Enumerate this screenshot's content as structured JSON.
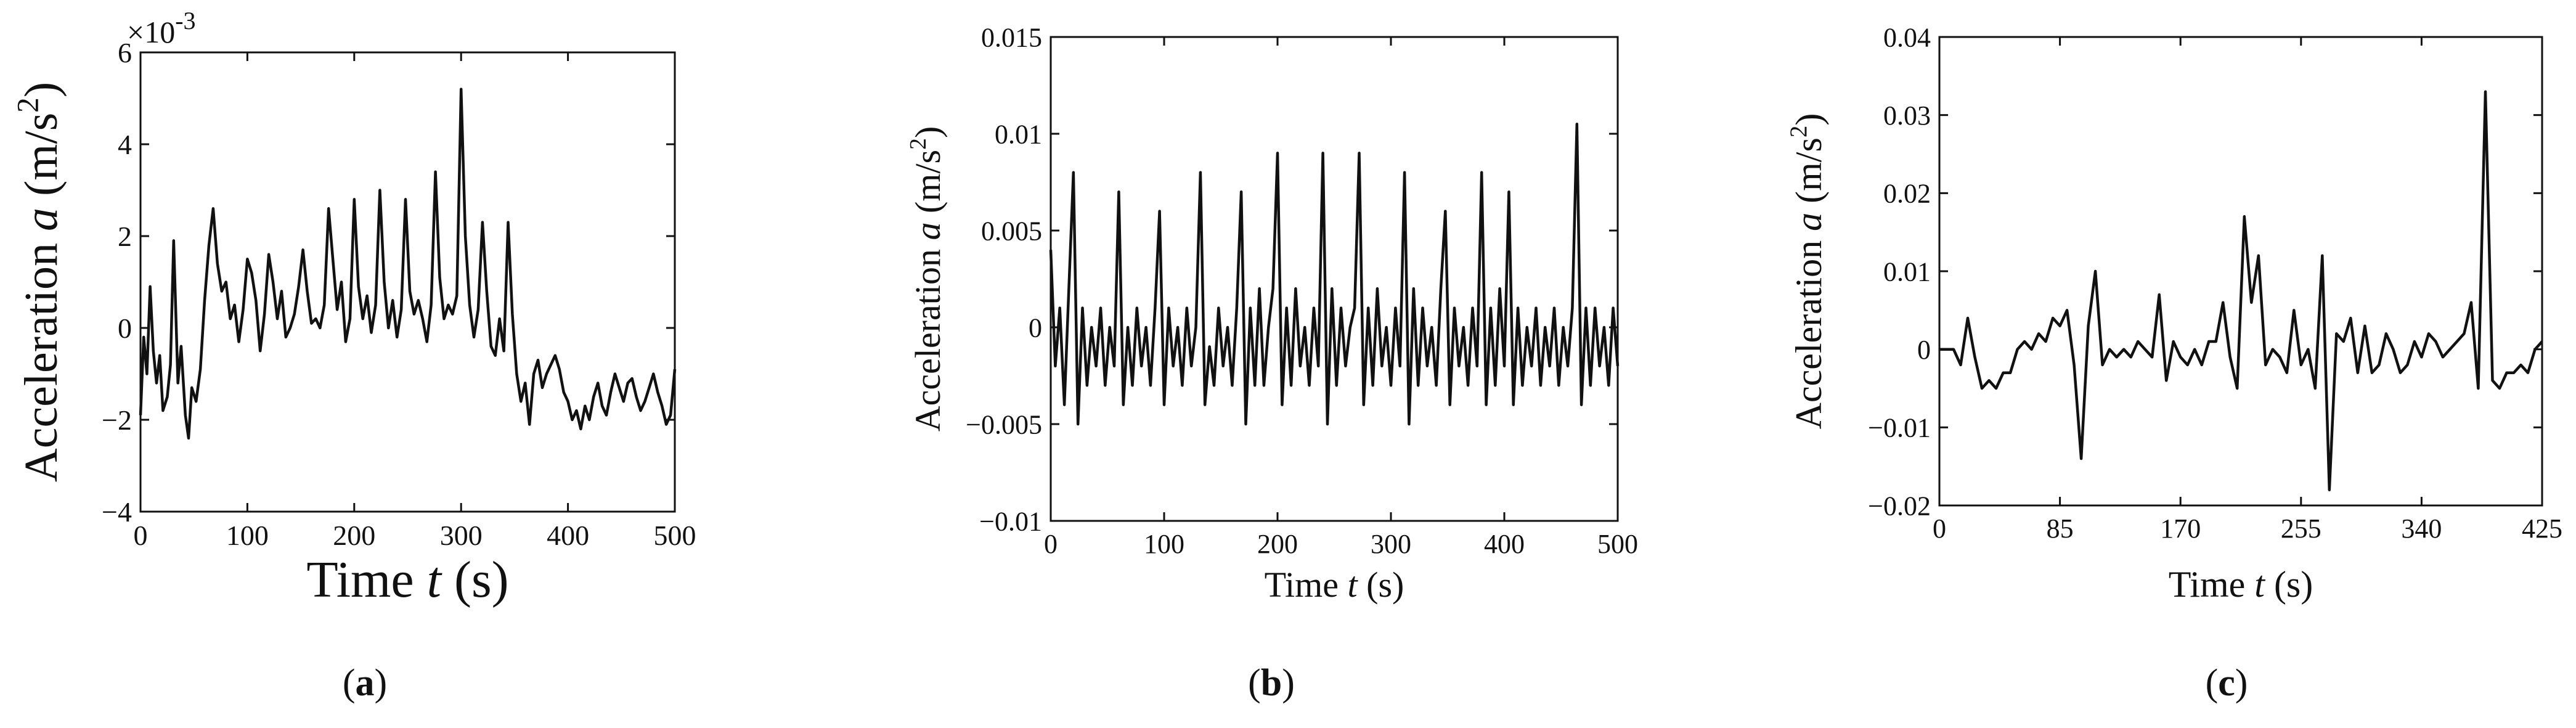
{
  "chart_data": [
    {
      "type": "line",
      "panel_label": "(a)",
      "xlabel_prefix": "Time ",
      "xlabel_var": "t",
      "xlabel_suffix": " (s)",
      "ylabel_prefix": "Acceleration ",
      "ylabel_var": "a",
      "ylabel_unit": " (m/s",
      "ylabel_exp": "2",
      "ylabel_close": ")",
      "y_exponent_label": "×10",
      "y_exponent_power": "-3",
      "xlim": [
        0,
        500
      ],
      "ylim": [
        -4,
        6
      ],
      "xticks": [
        0,
        100,
        200,
        300,
        400,
        500
      ],
      "yticks": [
        -4,
        -2,
        0,
        2,
        4,
        6
      ],
      "ytick_labels": [
        "−4",
        "−2",
        "0",
        "2",
        "4",
        "6"
      ],
      "series": [
        {
          "x": [
            0,
            3,
            6,
            9,
            12,
            15,
            18,
            21,
            25,
            28,
            31,
            35,
            38,
            42,
            45,
            48,
            52,
            56,
            60,
            64,
            68,
            72,
            76,
            80,
            84,
            88,
            92,
            96,
            100,
            104,
            108,
            112,
            116,
            120,
            124,
            128,
            132,
            136,
            140,
            144,
            148,
            152,
            156,
            160,
            164,
            168,
            172,
            176,
            180,
            184,
            188,
            192,
            196,
            200,
            204,
            208,
            212,
            216,
            220,
            224,
            228,
            232,
            236,
            240,
            244,
            248,
            252,
            256,
            260,
            264,
            268,
            272,
            276,
            280,
            284,
            288,
            292,
            296,
            300,
            304,
            308,
            312,
            316,
            320,
            324,
            328,
            332,
            336,
            340,
            344,
            348,
            352,
            356,
            360,
            364,
            368,
            372,
            376,
            380,
            384,
            388,
            392,
            396,
            400,
            404,
            408,
            412,
            416,
            420,
            424,
            428,
            432,
            436,
            440,
            444,
            448,
            452,
            456,
            460,
            464,
            468,
            472,
            476,
            480,
            484,
            488,
            492,
            496,
            500
          ],
          "y": [
            -1.9,
            -0.2,
            -1.0,
            0.9,
            -0.5,
            -1.2,
            -0.6,
            -1.8,
            -1.5,
            -0.8,
            1.9,
            -1.2,
            -0.4,
            -1.9,
            -2.4,
            -1.3,
            -1.6,
            -0.9,
            0.6,
            1.8,
            2.6,
            1.4,
            0.8,
            1.0,
            0.2,
            0.5,
            -0.3,
            0.4,
            1.5,
            1.2,
            0.6,
            -0.5,
            0.3,
            1.6,
            1.0,
            0.2,
            0.8,
            -0.2,
            0.0,
            0.3,
            0.9,
            1.7,
            0.8,
            0.1,
            0.2,
            0.0,
            0.5,
            2.6,
            1.5,
            0.4,
            1.0,
            -0.3,
            0.2,
            2.8,
            0.9,
            0.2,
            0.7,
            -0.1,
            0.5,
            3.0,
            1.0,
            0.0,
            0.6,
            -0.2,
            0.4,
            2.8,
            0.8,
            0.3,
            0.6,
            0.2,
            -0.3,
            0.5,
            3.4,
            1.1,
            0.2,
            0.5,
            0.3,
            0.7,
            5.2,
            2.0,
            0.5,
            -0.2,
            0.4,
            2.3,
            0.8,
            -0.4,
            -0.6,
            0.2,
            -0.5,
            2.3,
            0.3,
            -1.0,
            -1.6,
            -1.2,
            -2.1,
            -1.0,
            -0.7,
            -1.3,
            -1.0,
            -0.8,
            -0.6,
            -0.9,
            -1.4,
            -1.6,
            -2.0,
            -1.8,
            -2.2,
            -1.7,
            -2.0,
            -1.5,
            -1.2,
            -1.7,
            -1.9,
            -1.4,
            -1.0,
            -1.3,
            -1.6,
            -1.2,
            -1.1,
            -1.5,
            -1.8,
            -1.6,
            -1.3,
            -1.0,
            -1.4,
            -1.7,
            -2.1,
            -1.9,
            -0.9
          ]
        }
      ]
    },
    {
      "type": "line",
      "panel_label": "(b)",
      "xlabel_prefix": "Time ",
      "xlabel_var": "t",
      "xlabel_suffix": " (s)",
      "ylabel_prefix": "Acceleration ",
      "ylabel_var": "a",
      "ylabel_unit": " (m/s",
      "ylabel_exp": "2",
      "ylabel_close": ")",
      "xlim": [
        0,
        500
      ],
      "ylim": [
        -0.01,
        0.015
      ],
      "xticks": [
        0,
        100,
        200,
        300,
        400,
        500
      ],
      "yticks": [
        -0.01,
        -0.005,
        0,
        0.005,
        0.01,
        0.015
      ],
      "ytick_labels": [
        "−0.01",
        "−0.005",
        "0",
        "0.005",
        "0.01",
        "0.015"
      ],
      "series": [
        {
          "x": [
            0,
            4,
            8,
            12,
            16,
            20,
            24,
            28,
            32,
            36,
            40,
            44,
            48,
            52,
            56,
            60,
            64,
            68,
            72,
            76,
            80,
            84,
            88,
            92,
            96,
            100,
            104,
            108,
            112,
            116,
            120,
            124,
            128,
            132,
            136,
            140,
            144,
            148,
            152,
            156,
            160,
            164,
            168,
            172,
            176,
            180,
            184,
            188,
            192,
            196,
            200,
            204,
            208,
            212,
            216,
            220,
            224,
            228,
            232,
            236,
            240,
            244,
            248,
            252,
            256,
            260,
            264,
            268,
            272,
            276,
            280,
            284,
            288,
            292,
            296,
            300,
            304,
            308,
            312,
            316,
            320,
            324,
            328,
            332,
            336,
            340,
            344,
            348,
            352,
            356,
            360,
            364,
            368,
            372,
            376,
            380,
            384,
            388,
            392,
            396,
            400,
            404,
            408,
            412,
            416,
            420,
            424,
            428,
            432,
            436,
            440,
            444,
            448,
            452,
            456,
            460,
            464,
            468,
            472,
            476,
            480,
            484,
            488,
            492,
            496,
            500
          ],
          "y": [
            0.004,
            -0.002,
            0.001,
            -0.004,
            0.002,
            0.008,
            -0.005,
            0.001,
            -0.003,
            0.0,
            -0.002,
            0.001,
            -0.003,
            0.0,
            -0.002,
            0.007,
            -0.004,
            0.0,
            -0.003,
            0.001,
            -0.002,
            0.0,
            -0.003,
            0.001,
            0.006,
            -0.004,
            0.001,
            -0.002,
            0.0,
            -0.003,
            0.001,
            -0.002,
            0.0,
            0.008,
            -0.004,
            -0.001,
            -0.003,
            0.001,
            -0.002,
            0.0,
            -0.003,
            0.001,
            0.007,
            -0.005,
            0.001,
            -0.003,
            0.002,
            -0.003,
            0.0,
            0.002,
            0.009,
            -0.004,
            0.001,
            -0.003,
            0.002,
            -0.002,
            0.0,
            -0.003,
            0.001,
            -0.002,
            0.009,
            -0.005,
            0.002,
            -0.003,
            0.001,
            -0.002,
            0.0,
            0.001,
            0.009,
            -0.004,
            0.001,
            -0.003,
            0.002,
            -0.002,
            0.0,
            -0.003,
            0.001,
            -0.002,
            0.008,
            -0.005,
            0.002,
            -0.003,
            0.001,
            -0.002,
            0.0,
            -0.003,
            0.002,
            0.006,
            -0.004,
            0.001,
            -0.002,
            0.0,
            -0.003,
            0.001,
            -0.002,
            0.008,
            -0.004,
            0.001,
            -0.003,
            0.002,
            -0.002,
            0.007,
            -0.004,
            0.001,
            -0.003,
            0.0,
            -0.002,
            0.001,
            -0.003,
            0.0,
            -0.002,
            0.001,
            -0.003,
            0.0,
            -0.002,
            0.001,
            0.0105,
            -0.004,
            0.001,
            -0.003,
            0.001,
            -0.002,
            0.0,
            -0.003,
            0.001,
            -0.002
          ]
        }
      ]
    },
    {
      "type": "line",
      "panel_label": "(c)",
      "xlabel_prefix": "Time ",
      "xlabel_var": "t",
      "xlabel_suffix": " (s)",
      "ylabel_prefix": "Acceleration ",
      "ylabel_var": "a",
      "ylabel_unit": " (m/s",
      "ylabel_exp": "2",
      "ylabel_close": ")",
      "xlim": [
        0,
        425
      ],
      "ylim": [
        -0.02,
        0.04
      ],
      "xticks": [
        0,
        85,
        170,
        255,
        340,
        425
      ],
      "yticks": [
        -0.02,
        -0.01,
        0,
        0.01,
        0.02,
        0.03,
        0.04
      ],
      "ytick_labels": [
        "−0.02",
        "−0.01",
        "0",
        "0.01",
        "0.02",
        "0.03",
        "0.04"
      ],
      "series": [
        {
          "x": [
            0,
            5,
            10,
            15,
            20,
            25,
            30,
            35,
            40,
            45,
            50,
            55,
            60,
            65,
            70,
            75,
            80,
            85,
            90,
            95,
            100,
            105,
            110,
            115,
            120,
            125,
            130,
            135,
            140,
            145,
            150,
            155,
            160,
            165,
            170,
            175,
            180,
            185,
            190,
            195,
            200,
            205,
            210,
            215,
            220,
            225,
            230,
            235,
            240,
            245,
            250,
            255,
            260,
            265,
            270,
            275,
            280,
            285,
            290,
            295,
            300,
            305,
            310,
            315,
            320,
            325,
            330,
            335,
            340,
            345,
            350,
            355,
            360,
            365,
            370,
            375,
            380,
            385,
            390,
            395,
            400,
            405,
            410,
            415,
            420,
            425
          ],
          "y": [
            0.0,
            0.0,
            0.0,
            -0.002,
            0.004,
            -0.001,
            -0.005,
            -0.004,
            -0.005,
            -0.003,
            -0.003,
            0.0,
            0.001,
            0.0,
            0.002,
            0.001,
            0.004,
            0.003,
            0.005,
            -0.002,
            -0.014,
            0.003,
            0.01,
            -0.002,
            0.0,
            -0.001,
            0.0,
            -0.001,
            0.001,
            0.0,
            -0.001,
            0.007,
            -0.004,
            0.001,
            -0.001,
            -0.002,
            0.0,
            -0.002,
            0.001,
            0.001,
            0.006,
            -0.001,
            -0.005,
            0.017,
            0.006,
            0.012,
            -0.002,
            0.0,
            -0.001,
            -0.003,
            0.005,
            -0.002,
            0.0,
            -0.005,
            0.012,
            -0.018,
            0.002,
            0.001,
            0.004,
            -0.003,
            0.003,
            -0.003,
            -0.002,
            0.002,
            0.0,
            -0.003,
            -0.002,
            0.001,
            -0.001,
            0.002,
            0.001,
            -0.001,
            0.0,
            0.001,
            0.002,
            0.006,
            -0.005,
            0.033,
            -0.004,
            -0.005,
            -0.003,
            -0.003,
            -0.002,
            -0.003,
            0.0,
            0.001
          ]
        }
      ]
    }
  ]
}
